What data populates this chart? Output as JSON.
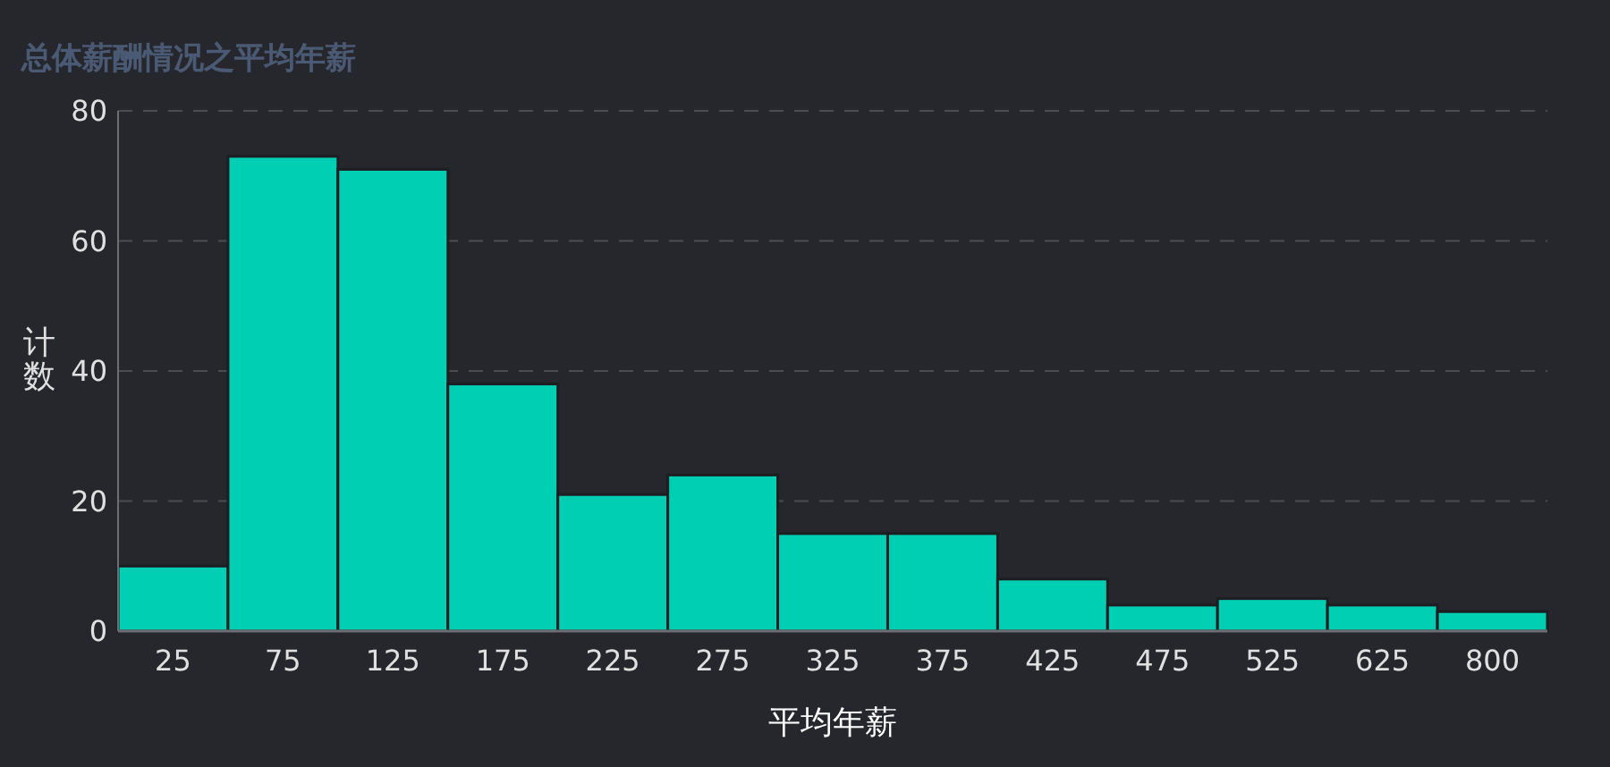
{
  "chart_data": {
    "type": "bar",
    "title": "总体薪酬情况之平均年薪",
    "xlabel": "平均年薪",
    "ylabel": "计数",
    "categories": [
      "25",
      "75",
      "125",
      "175",
      "225",
      "275",
      "325",
      "375",
      "425",
      "475",
      "525",
      "625",
      "800"
    ],
    "values": [
      10,
      73,
      71,
      38,
      21,
      24,
      15,
      15,
      8,
      4,
      5,
      4,
      3
    ],
    "color": "#00cfb4",
    "ylim": [
      0,
      80
    ],
    "yticks": [
      0,
      20,
      40,
      60,
      80
    ],
    "grid": "y"
  }
}
